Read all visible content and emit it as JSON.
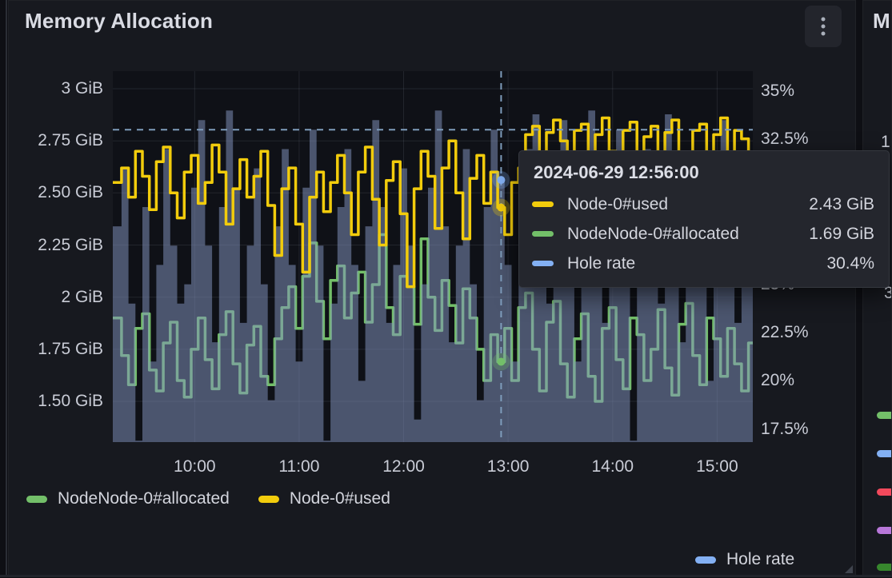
{
  "panel": {
    "title": "Memory Allocation"
  },
  "axes": {
    "left": {
      "labels": [
        "3 GiB",
        "2.75 GiB",
        "2.50 GiB",
        "2.25 GiB",
        "2 GiB",
        "1.75 GiB",
        "1.50 GiB"
      ],
      "values": [
        3,
        2.75,
        2.5,
        2.25,
        2,
        1.75,
        1.5
      ]
    },
    "right": {
      "labels": [
        "35%",
        "32.5%",
        "30%",
        "27.5%",
        "25%",
        "22.5%",
        "20%",
        "17.5%"
      ],
      "values": [
        35,
        32.5,
        30,
        27.5,
        25,
        22.5,
        20,
        17.5
      ]
    },
    "x": {
      "labels": [
        "10:00",
        "11:00",
        "12:00",
        "13:00",
        "14:00",
        "15:00"
      ],
      "minutes": [
        600,
        660,
        720,
        780,
        840,
        900
      ]
    }
  },
  "tooltip": {
    "timestamp": "2024-06-29 12:56:00",
    "rows": [
      {
        "label": "Node-0#used",
        "value": "2.43 GiB",
        "color": "#f2cc0c"
      },
      {
        "label": "NodeNode-0#allocated",
        "value": "1.69 GiB",
        "color": "#73bf69"
      },
      {
        "label": "Hole rate",
        "value": "30.4%",
        "color": "#83b0f3"
      }
    ]
  },
  "legend": {
    "items": [
      {
        "label": "NodeNode-0#allocated",
        "color": "#73bf69"
      },
      {
        "label": "Node-0#used",
        "color": "#f2cc0c"
      }
    ],
    "hole": {
      "label": "Hole rate",
      "color": "#83b0f3"
    }
  },
  "right_panel": {
    "title": "M",
    "fragments": [
      "1.",
      "3"
    ],
    "legend_colors": [
      "#73bf69",
      "#83b0f3",
      "#f2495c",
      "#b877d9",
      "#37872d"
    ],
    "legend_tops": [
      514,
      562,
      610,
      658,
      704
    ]
  },
  "chart_data": {
    "type": "line",
    "title": "Memory Allocation",
    "x_start_min": 556,
    "x_step_min": 4,
    "x_range_min": [
      553,
      920.5
    ],
    "x_ticks": [
      "10:00",
      "11:00",
      "12:00",
      "13:00",
      "14:00",
      "15:00"
    ],
    "left_axis": {
      "unit": "GiB",
      "ticks": [
        3,
        2.75,
        2.5,
        2.25,
        2,
        1.75,
        1.5
      ],
      "range": [
        1.304,
        3.084
      ]
    },
    "right_axis": {
      "unit": "%",
      "ticks": [
        35,
        32.5,
        30,
        27.5,
        25,
        22.5,
        20,
        17.5
      ],
      "range": [
        16.83,
        36.0
      ]
    },
    "crosshair": {
      "time": "12:56",
      "x_minute": 776,
      "cursor_pct": 33.0,
      "points": [
        {
          "series": "Node-0#used",
          "value": 2.43
        },
        {
          "series": "NodeNode-0#allocated",
          "value": 1.69
        },
        {
          "series": "Hole rate",
          "value": 30.4
        }
      ]
    },
    "series": [
      {
        "name": "Hole rate",
        "axis": "right",
        "style": "area",
        "color": "#83b0f3",
        "values": [
          28,
          31,
          24,
          16.9,
          29,
          21,
          26,
          32,
          27,
          24,
          25,
          30,
          33.5,
          27,
          22,
          29,
          34,
          30,
          23,
          27,
          31,
          25,
          19,
          28,
          32,
          26,
          21,
          30,
          33,
          27,
          16.9,
          24,
          29,
          32,
          26,
          20,
          28,
          33.5,
          29,
          23,
          26,
          31,
          27,
          18,
          25,
          30,
          34,
          28,
          22,
          27,
          32,
          25,
          19,
          29,
          33,
          30.4,
          26,
          21,
          28,
          32,
          33.8,
          29,
          24,
          30,
          33.5,
          27,
          21,
          31,
          34,
          28,
          23,
          29,
          33,
          26,
          16.9,
          28,
          32,
          30,
          24,
          33.8,
          29,
          22,
          27,
          31,
          25,
          20,
          30,
          33.5,
          28,
          23,
          29,
          26
        ]
      },
      {
        "name": "NodeNode-0#allocated",
        "axis": "left",
        "style": "line",
        "color": "#73bf69",
        "values": [
          1.9,
          1.72,
          1.58,
          1.85,
          1.92,
          1.65,
          1.55,
          1.78,
          1.88,
          1.6,
          1.52,
          1.75,
          1.9,
          1.7,
          1.56,
          1.82,
          1.93,
          1.68,
          1.54,
          1.77,
          1.86,
          1.62,
          1.58,
          1.8,
          1.95,
          2.05,
          1.85,
          2.1,
          2.26,
          1.98,
          1.8,
          2.08,
          2.15,
          1.9,
          2.02,
          2.12,
          1.88,
          2.06,
          2.3,
          1.95,
          1.82,
          2.1,
          2.05,
          1.87,
          2.28,
          2.0,
          1.84,
          2.08,
          1.96,
          1.78,
          2.04,
          1.9,
          1.75,
          1.6,
          1.82,
          1.69,
          1.85,
          1.6,
          1.95,
          2.02,
          1.75,
          1.55,
          1.88,
          1.98,
          1.68,
          1.52,
          1.8,
          1.92,
          1.62,
          1.5,
          1.85,
          1.95,
          1.7,
          1.56,
          1.9,
          1.82,
          1.6,
          1.75,
          1.94,
          1.66,
          1.53,
          1.87,
          1.97,
          1.72,
          1.58,
          1.9,
          1.8,
          1.62,
          1.85,
          1.68,
          1.55,
          1.78
        ]
      },
      {
        "name": "Node-0#used",
        "axis": "left",
        "style": "line",
        "color": "#f2cc0c",
        "values": [
          2.55,
          2.62,
          2.48,
          2.7,
          2.58,
          2.42,
          2.65,
          2.72,
          2.5,
          2.38,
          2.6,
          2.68,
          2.45,
          2.55,
          2.73,
          2.6,
          2.35,
          2.52,
          2.66,
          2.48,
          2.58,
          2.7,
          2.44,
          2.2,
          2.52,
          2.62,
          2.35,
          2.12,
          2.48,
          2.6,
          2.41,
          2.55,
          2.68,
          2.5,
          2.3,
          2.6,
          2.72,
          2.47,
          2.25,
          2.56,
          2.65,
          2.4,
          2.05,
          2.52,
          2.7,
          2.58,
          2.33,
          2.62,
          2.75,
          2.5,
          2.28,
          2.57,
          2.68,
          2.45,
          2.6,
          2.43,
          2.3,
          2.55,
          2.62,
          2.78,
          2.82,
          2.6,
          2.79,
          2.85,
          2.75,
          2.4,
          2.8,
          2.83,
          2.62,
          2.78,
          2.86,
          2.7,
          2.45,
          2.8,
          2.84,
          2.6,
          2.77,
          2.82,
          2.55,
          2.79,
          2.85,
          2.68,
          2.42,
          2.8,
          2.83,
          2.65,
          2.78,
          2.86,
          2.58,
          2.8,
          2.76,
          2.62
        ]
      }
    ]
  },
  "colors": {
    "page_bg": "#0e0f14",
    "panel_bg": "#17191f",
    "plot_bg": "#0f1117",
    "grid": "rgba(204,215,240,0.10)",
    "text": "#c9ccd6",
    "title": "#d9dbe3",
    "yellow": "#f2cc0c",
    "green": "#73bf69",
    "blue": "#83b0f3",
    "area_fill": "rgba(130,148,190,0.52)",
    "crosshair": "#7e9cbb",
    "tooltip_bg": "#24262d",
    "tooltip_border": "#35383f"
  }
}
